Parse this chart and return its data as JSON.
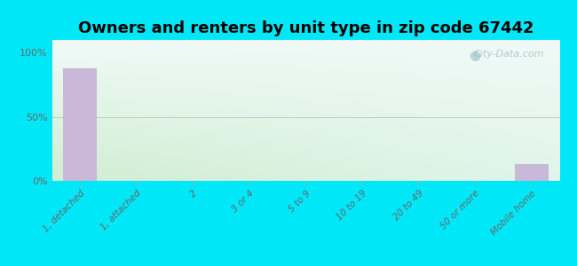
{
  "title": "Owners and renters by unit type in zip code 67442",
  "categories": [
    "1, detached",
    "1, attached",
    "2",
    "3 or 4",
    "5 to 9",
    "10 to 19",
    "20 to 49",
    "50 or more",
    "Mobile home"
  ],
  "values": [
    88,
    0,
    0,
    0,
    0,
    0,
    0,
    0,
    13
  ],
  "bar_color": "#c9b8d8",
  "background_outer": "#00e8f8",
  "gradient_top_left": "#d8eed8",
  "gradient_top_right": "#f0fafa",
  "gradient_bottom_left": "#c8e8c8",
  "gradient_bottom_right": "#e8f8f0",
  "yticks": [
    0,
    50,
    100
  ],
  "ytick_labels": [
    "0%",
    "50%",
    "100%"
  ],
  "ylim": [
    0,
    110
  ],
  "title_fontsize": 13,
  "watermark": "City-Data.com",
  "fifty_line_color": "#cccccc",
  "tick_label_color": "#666666"
}
